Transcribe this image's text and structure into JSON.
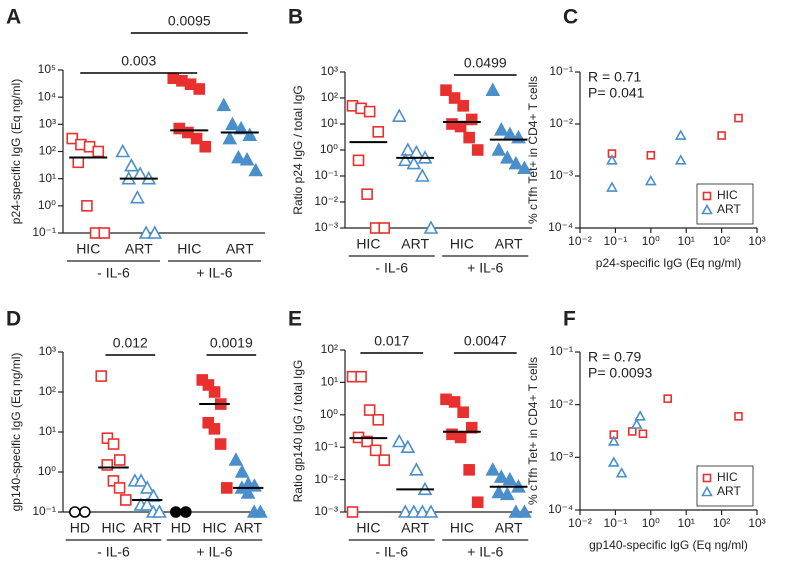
{
  "chart_data": [
    {
      "type": "dotplot",
      "panel": "A",
      "ylabel": "p24-specific IgG  (Eq ng/ml)",
      "log_y": true,
      "ylim": [
        0.1,
        100000
      ],
      "yticks": [
        {
          "value": 0.1,
          "label": "10⁻¹"
        },
        {
          "value": 1,
          "label": "10⁰"
        },
        {
          "value": 10,
          "label": "10¹"
        },
        {
          "value": 100,
          "label": "10²"
        },
        {
          "value": 1000,
          "label": "10³"
        },
        {
          "value": 10000,
          "label": "10⁴"
        },
        {
          "value": 100000,
          "label": "10⁵"
        }
      ],
      "columns": [
        {
          "label": "HIC",
          "color": "#e8312f",
          "marker": "square",
          "filled": false,
          "values": [
            300,
            180,
            150,
            100,
            40,
            1,
            0.1,
            0.1
          ],
          "median": 60
        },
        {
          "label": "ART",
          "color": "#4a8fcb",
          "marker": "triangle",
          "filled": false,
          "values": [
            100,
            30,
            15,
            10,
            10,
            2,
            0.1,
            0.1
          ],
          "median": 10
        },
        {
          "label": "HIC",
          "color": "#e8312f",
          "marker": "square",
          "filled": true,
          "values": [
            50000,
            40000,
            30000,
            20000,
            700,
            500,
            300,
            150
          ],
          "median": 600
        },
        {
          "label": "ART",
          "color": "#4a8fcb",
          "marker": "triangle",
          "filled": true,
          "values": [
            5000,
            1000,
            700,
            400,
            300,
            60,
            50,
            20
          ],
          "median": 500
        }
      ],
      "groups": [
        {
          "label": "- IL-6",
          "columns": [
            0,
            1
          ]
        },
        {
          "label": "+ IL-6",
          "columns": [
            2,
            3
          ]
        }
      ],
      "comparisons": [
        {
          "columns": [
            0,
            2
          ],
          "label": "0.003"
        },
        {
          "columns": [
            1,
            3
          ],
          "label": "0.0095"
        }
      ]
    },
    {
      "type": "dotplot",
      "panel": "B",
      "ylabel": "Ratio p24 IgG / total IgG",
      "log_y": true,
      "ylim": [
        0.001,
        1000
      ],
      "yticks": [
        {
          "value": 0.001,
          "label": "10⁻³"
        },
        {
          "value": 0.01,
          "label": "10⁻²"
        },
        {
          "value": 0.1,
          "label": "10⁻¹"
        },
        {
          "value": 1,
          "label": "10⁰"
        },
        {
          "value": 10,
          "label": "10¹"
        },
        {
          "value": 100,
          "label": "10²"
        },
        {
          "value": 1000,
          "label": "10³"
        }
      ],
      "columns": [
        {
          "label": "HIC",
          "color": "#e8312f",
          "marker": "square",
          "filled": false,
          "values": [
            50,
            40,
            30,
            5,
            0.4,
            0.02,
            0.001,
            0.001
          ],
          "median": 2
        },
        {
          "label": "ART",
          "color": "#4a8fcb",
          "marker": "triangle",
          "filled": false,
          "values": [
            20,
            1,
            0.8,
            0.5,
            0.4,
            0.3,
            0.1,
            0.001
          ],
          "median": 0.5
        },
        {
          "label": "HIC",
          "color": "#e8312f",
          "marker": "square",
          "filled": true,
          "values": [
            200,
            100,
            50,
            15,
            10,
            8,
            3,
            1
          ],
          "median": 12
        },
        {
          "label": "ART",
          "color": "#4a8fcb",
          "marker": "triangle",
          "filled": true,
          "values": [
            200,
            6,
            4,
            3,
            1,
            0.5,
            0.3,
            0.2
          ],
          "median": 2.5
        }
      ],
      "groups": [
        {
          "label": "- IL-6",
          "columns": [
            0,
            1
          ]
        },
        {
          "label": "+ IL-6",
          "columns": [
            2,
            3
          ]
        }
      ],
      "comparisons": [
        {
          "columns": [
            2,
            3
          ],
          "label": "0.0499"
        }
      ]
    },
    {
      "type": "scatter",
      "panel": "C",
      "xlabel": "p24-specific IgG (Eq ng/ml)",
      "ylabel": "% cTfh Tet+ in CD4+ T cells",
      "log_x": true,
      "log_y": true,
      "xlim": [
        0.01,
        1000
      ],
      "ylim": [
        0.0001,
        0.1
      ],
      "xticks": [
        {
          "value": 0.01,
          "label": "10⁻²"
        },
        {
          "value": 0.1,
          "label": "10⁻¹"
        },
        {
          "value": 1,
          "label": "10⁰"
        },
        {
          "value": 10,
          "label": "10¹"
        },
        {
          "value": 100,
          "label": "10²"
        },
        {
          "value": 1000,
          "label": "10³"
        }
      ],
      "yticks": [
        {
          "value": 0.0001,
          "label": "10⁻⁴"
        },
        {
          "value": 0.001,
          "label": "10⁻³"
        },
        {
          "value": 0.01,
          "label": "10⁻²"
        },
        {
          "value": 0.1,
          "label": "10⁻¹"
        }
      ],
      "annotations": [
        "R = 0.71",
        "P= 0.041"
      ],
      "legend": "lower right",
      "series": [
        {
          "name": "HIC",
          "color": "#e8312f",
          "marker": "square",
          "x": [
            0.08,
            1,
            100,
            300
          ],
          "values": [
            0.0027,
            0.0025,
            0.006,
            0.013
          ]
        },
        {
          "name": "ART",
          "color": "#4a8fcb",
          "marker": "triangle",
          "x": [
            0.08,
            0.08,
            1,
            7,
            7
          ],
          "values": [
            0.002,
            0.0006,
            0.0008,
            0.006,
            0.002
          ]
        }
      ]
    },
    {
      "type": "dotplot",
      "panel": "D",
      "ylabel": "gp140-specific IgG  (Eq ng/ml)",
      "log_y": true,
      "ylim": [
        0.1,
        1000
      ],
      "yticks": [
        {
          "value": 0.1,
          "label": "10⁻¹"
        },
        {
          "value": 1,
          "label": "10⁰"
        },
        {
          "value": 10,
          "label": "10¹"
        },
        {
          "value": 100,
          "label": "10²"
        },
        {
          "value": 1000,
          "label": "10³"
        }
      ],
      "columns": [
        {
          "label": "HD",
          "color": "#000000",
          "marker": "circle",
          "filled": false,
          "values": [
            0.1,
            0.1
          ]
        },
        {
          "label": "HIC",
          "color": "#e8312f",
          "marker": "square",
          "filled": false,
          "values": [
            250,
            7,
            5,
            2,
            1.5,
            0.6,
            0.4,
            0.2
          ],
          "median": 1.3
        },
        {
          "label": "ART",
          "color": "#4a8fcb",
          "marker": "triangle",
          "filled": false,
          "values": [
            0.6,
            0.6,
            0.4,
            0.25,
            0.15,
            0.15,
            0.1,
            0.1
          ],
          "median": 0.2
        },
        {
          "label": "HD",
          "color": "#000000",
          "marker": "circle",
          "filled": true,
          "values": [
            0.1,
            0.1
          ]
        },
        {
          "label": "HIC",
          "color": "#e8312f",
          "marker": "square",
          "filled": true,
          "values": [
            200,
            150,
            100,
            50,
            17,
            12,
            5,
            0.4
          ],
          "median": 50
        },
        {
          "label": "ART",
          "color": "#4a8fcb",
          "marker": "triangle",
          "filled": true,
          "values": [
            2,
            1,
            0.5,
            0.45,
            0.4,
            0.3,
            0.1,
            0.1
          ],
          "median": 0.4
        }
      ],
      "groups": [
        {
          "label": "- IL-6",
          "columns": [
            0,
            1,
            2
          ]
        },
        {
          "label": "+ IL-6",
          "columns": [
            3,
            4,
            5
          ]
        }
      ],
      "comparisons": [
        {
          "columns": [
            1,
            2
          ],
          "label": "0.012"
        },
        {
          "columns": [
            4,
            5
          ],
          "label": "0.0019"
        }
      ]
    },
    {
      "type": "dotplot",
      "panel": "E",
      "ylabel": "Ratio gp140 IgG / total IgG",
      "log_y": true,
      "ylim": [
        0.001,
        100
      ],
      "yticks": [
        {
          "value": 0.001,
          "label": "10⁻³"
        },
        {
          "value": 0.01,
          "label": "10⁻²"
        },
        {
          "value": 0.1,
          "label": "10⁻¹"
        },
        {
          "value": 1,
          "label": "10⁰"
        },
        {
          "value": 10,
          "label": "10¹"
        },
        {
          "value": 100,
          "label": "10²"
        }
      ],
      "columns": [
        {
          "label": "HIC",
          "color": "#e8312f",
          "marker": "square",
          "filled": false,
          "values": [
            15,
            15,
            1.4,
            0.7,
            0.2,
            0.15,
            0.08,
            0.04,
            0.001
          ],
          "median": 0.19
        },
        {
          "label": "ART",
          "color": "#4a8fcb",
          "marker": "triangle",
          "filled": false,
          "values": [
            0.15,
            0.1,
            0.02,
            0.005,
            0.001,
            0.001,
            0.001,
            0.001
          ],
          "median": 0.005
        },
        {
          "label": "HIC",
          "color": "#e8312f",
          "marker": "square",
          "filled": true,
          "values": [
            3,
            2.5,
            1.2,
            0.4,
            0.25,
            0.2,
            0.02,
            0.002
          ],
          "median": 0.3
        },
        {
          "label": "ART",
          "color": "#4a8fcb",
          "marker": "triangle",
          "filled": true,
          "values": [
            0.02,
            0.012,
            0.01,
            0.006,
            0.004,
            0.0035,
            0.001,
            0.001
          ],
          "median": 0.006
        }
      ],
      "groups": [
        {
          "label": "- IL-6",
          "columns": [
            0,
            1
          ]
        },
        {
          "label": "+ IL-6",
          "columns": [
            2,
            3
          ]
        }
      ],
      "comparisons": [
        {
          "columns": [
            0,
            1
          ],
          "label": "0.017"
        },
        {
          "columns": [
            2,
            3
          ],
          "label": "0.0047"
        }
      ]
    },
    {
      "type": "scatter",
      "panel": "F",
      "xlabel": "gp140-specific IgG (Eq ng/ml)",
      "ylabel": "% cTfh Tet+ in CD4+ T cells",
      "log_x": true,
      "log_y": true,
      "xlim": [
        0.01,
        1000
      ],
      "ylim": [
        0.0001,
        0.1
      ],
      "xticks": [
        {
          "value": 0.01,
          "label": "10⁻²"
        },
        {
          "value": 0.1,
          "label": "10⁻¹"
        },
        {
          "value": 1,
          "label": "10⁰"
        },
        {
          "value": 10,
          "label": "10¹"
        },
        {
          "value": 100,
          "label": "10²"
        },
        {
          "value": 1000,
          "label": "10³"
        }
      ],
      "yticks": [
        {
          "value": 0.0001,
          "label": "10⁻⁴"
        },
        {
          "value": 0.001,
          "label": "10⁻³"
        },
        {
          "value": 0.01,
          "label": "10⁻²"
        },
        {
          "value": 0.1,
          "label": "10⁻¹"
        }
      ],
      "annotations": [
        "R = 0.79",
        "P= 0.0093"
      ],
      "legend": "lower right",
      "series": [
        {
          "name": "HIC",
          "color": "#e8312f",
          "marker": "square",
          "x": [
            0.09,
            0.3,
            0.6,
            3,
            300
          ],
          "values": [
            0.0027,
            0.0031,
            0.0028,
            0.013,
            0.006
          ]
        },
        {
          "name": "ART",
          "color": "#4a8fcb",
          "marker": "triangle",
          "x": [
            0.09,
            0.09,
            0.15,
            0.4,
            0.5
          ],
          "values": [
            0.002,
            0.0008,
            0.0005,
            0.0042,
            0.006
          ]
        }
      ]
    }
  ]
}
